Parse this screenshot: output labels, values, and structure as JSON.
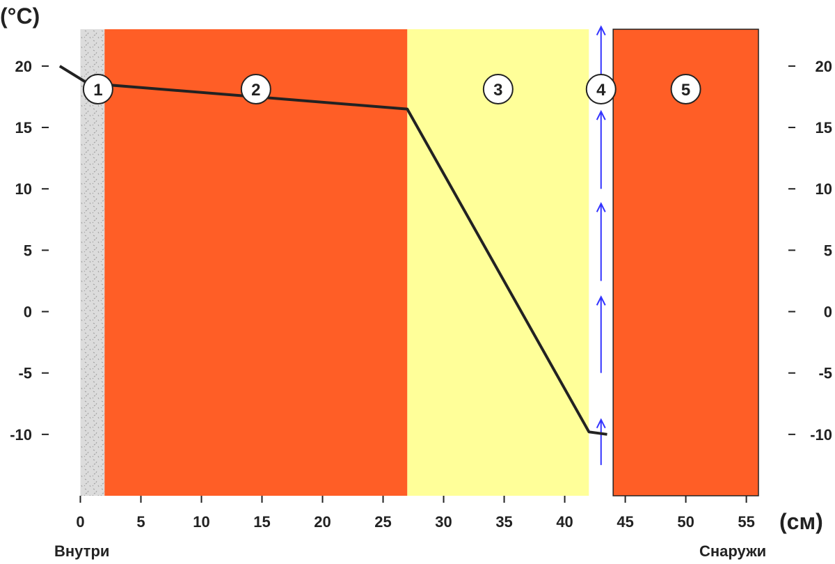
{
  "chart_data": {
    "type": "line",
    "title": "",
    "x_unit_label": "(см)",
    "y_unit_label": "(°C)",
    "xlim": [
      -0.2,
      56
    ],
    "ylim": [
      -15,
      23
    ],
    "x_ticks": [
      0,
      5,
      10,
      15,
      20,
      25,
      30,
      35,
      40,
      45,
      50,
      55
    ],
    "y_ticks": [
      20,
      15,
      10,
      5,
      0,
      -5,
      -10
    ],
    "x_tick_labels": [
      "0",
      "5",
      "10",
      "15",
      "20",
      "25",
      "30",
      "35",
      "40",
      "45",
      "50",
      "55"
    ],
    "y_tick_labels": [
      "20",
      "15",
      "10",
      "5",
      "0",
      "-5",
      "-10"
    ],
    "right_axis_tick_labels": [
      "20",
      "15",
      "10",
      "5",
      "0",
      "-5",
      "-10"
    ],
    "left_side_label": "Внутри",
    "right_side_label": "Снаружи",
    "grid": false,
    "layers": [
      {
        "label": "1",
        "x_start": 0,
        "x_end": 2,
        "color": "#dcdcdc",
        "fill": "plaster-texture"
      },
      {
        "label": "2",
        "x_start": 2,
        "x_end": 27,
        "color": "#ff5e26",
        "fill": "solid"
      },
      {
        "label": "3",
        "x_start": 27,
        "x_end": 42,
        "color": "#ffff99",
        "fill": "solid"
      },
      {
        "label": "4",
        "x_start": 42,
        "x_end": 44,
        "color": "#ffffff",
        "fill": "air-gap"
      },
      {
        "label": "5",
        "x_start": 44,
        "x_end": 56,
        "color": "#ff5e26",
        "fill": "solid"
      }
    ],
    "series": [
      {
        "color": "#222222",
        "points": [
          [
            -1.7,
            20
          ],
          [
            0.6,
            18.6
          ],
          [
            27,
            16.5
          ],
          [
            42,
            -9.8
          ],
          [
            43.5,
            -10
          ]
        ]
      }
    ],
    "airflow": {
      "x": 43,
      "direction": "up",
      "color": "#3333ff",
      "arrows": [
        [
          -12.5,
          -8.8
        ],
        [
          -5,
          1.2
        ],
        [
          2.5,
          8.8
        ],
        [
          10,
          16.3
        ],
        [
          17.5,
          23.2
        ]
      ]
    }
  }
}
